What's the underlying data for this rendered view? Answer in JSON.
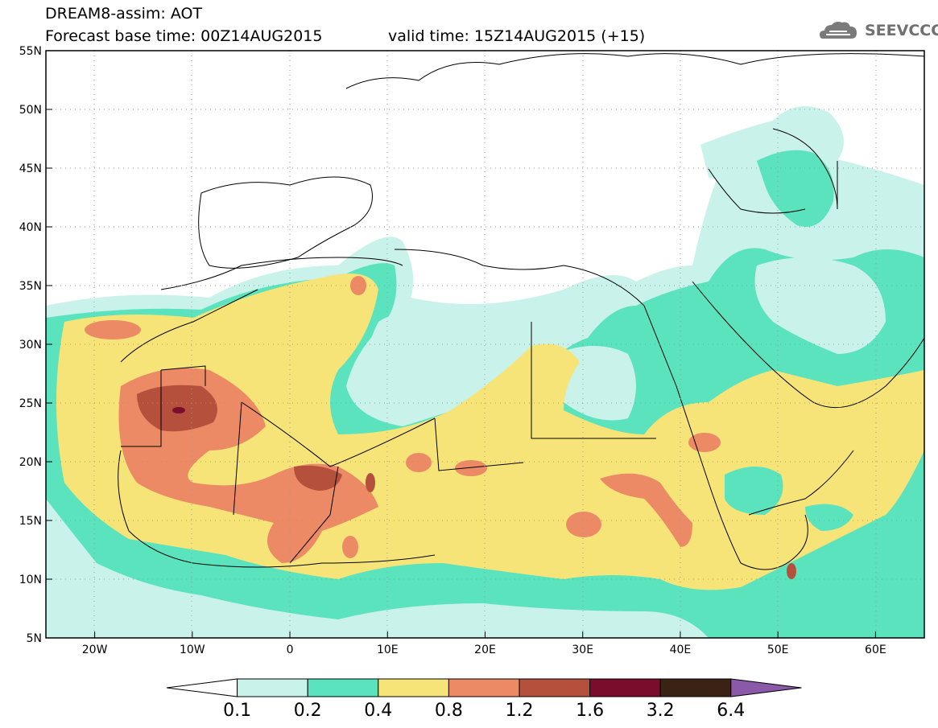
{
  "header": {
    "title_line1": "DREAM8-assim: AOT",
    "title_line2": "Forecast base time: 00Z14AUG2015",
    "valid_time": "valid time: 15Z14AUG2015 (+15)",
    "logo_text": "SEEVCCC"
  },
  "map": {
    "lat_labels": [
      "55N",
      "50N",
      "45N",
      "40N",
      "35N",
      "30N",
      "25N",
      "20N",
      "15N",
      "10N",
      "5N"
    ],
    "lon_labels": [
      "20W",
      "10W",
      "0",
      "10E",
      "20E",
      "30E",
      "40E",
      "50E",
      "60E"
    ],
    "lon_range": [
      -25,
      65
    ],
    "lat_range": [
      5,
      55
    ]
  },
  "colorbar": {
    "labels": [
      "0.1",
      "0.2",
      "0.4",
      "0.8",
      "1.2",
      "1.6",
      "3.2",
      "6.4"
    ],
    "colors": [
      "#ffffff",
      "#c9f2ea",
      "#5ae3bd",
      "#f7e478",
      "#ec8a66",
      "#b5503c",
      "#7a0c2c",
      "#3a2314",
      "#8a5aa8"
    ]
  },
  "colors": {
    "c1": "#c9f2ea",
    "c2": "#5ae3bd",
    "c3": "#f7e478",
    "c4": "#ec8a66",
    "c5": "#b5503c",
    "c6": "#7a0c2c"
  }
}
